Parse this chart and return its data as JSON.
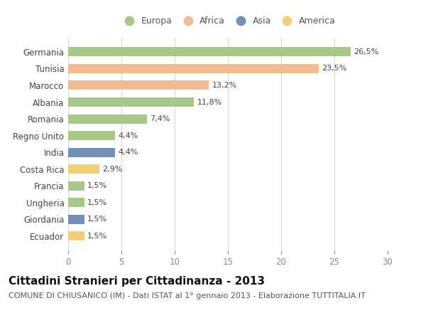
{
  "countries": [
    "Germania",
    "Tunisia",
    "Marocco",
    "Albania",
    "Romania",
    "Regno Unito",
    "India",
    "Costa Rica",
    "Francia",
    "Ungheria",
    "Giordania",
    "Ecuador"
  ],
  "values": [
    26.5,
    23.5,
    13.2,
    11.8,
    7.4,
    4.4,
    4.4,
    2.9,
    1.5,
    1.5,
    1.5,
    1.5
  ],
  "labels": [
    "26,5%",
    "23,5%",
    "13,2%",
    "11,8%",
    "7,4%",
    "4,4%",
    "4,4%",
    "2,9%",
    "1,5%",
    "1,5%",
    "1,5%",
    "1,5%"
  ],
  "continents": [
    "Europa",
    "Africa",
    "Africa",
    "Europa",
    "Europa",
    "Europa",
    "Asia",
    "America",
    "Europa",
    "Europa",
    "Asia",
    "America"
  ],
  "colors": {
    "Europa": "#a8c88a",
    "Africa": "#f0bc90",
    "Asia": "#7090b8",
    "America": "#f0d070"
  },
  "legend_order": [
    "Europa",
    "Africa",
    "Asia",
    "America"
  ],
  "xlim": [
    0,
    30
  ],
  "xticks": [
    0,
    5,
    10,
    15,
    20,
    25,
    30
  ],
  "title": "Cittadini Stranieri per Cittadinanza - 2013",
  "subtitle": "COMUNE DI CHIUSANICO (IM) - Dati ISTAT al 1° gennaio 2013 - Elaborazione TUTTITALIA.IT",
  "bg_color": "#ffffff",
  "grid_color": "#d8d8d8",
  "bar_height": 0.55,
  "title_fontsize": 11,
  "subtitle_fontsize": 8,
  "tick_fontsize": 8.5,
  "label_fontsize": 8,
  "legend_fontsize": 9
}
